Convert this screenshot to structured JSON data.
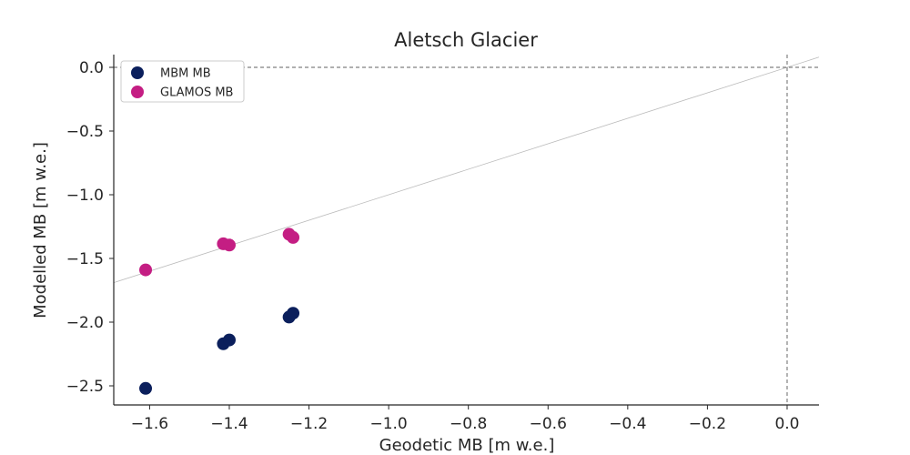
{
  "chart_data": {
    "type": "scatter",
    "title": "Aletsch Glacier",
    "xlabel": "Geodetic MB [m w.e.]",
    "ylabel": "Modelled MB [m w.e.]",
    "xlim": [
      -1.69,
      0.08
    ],
    "ylim": [
      -2.65,
      0.1
    ],
    "xticks": [
      -1.6,
      -1.4,
      -1.2,
      -1.0,
      -0.8,
      -0.6,
      -0.4,
      -0.2,
      0.0
    ],
    "xtick_labels": [
      "−1.6",
      "−1.4",
      "−1.2",
      "−1.0",
      "−0.8",
      "−0.6",
      "−0.4",
      "−0.2",
      "0.0"
    ],
    "yticks": [
      0.0,
      -0.5,
      -1.0,
      -1.5,
      -2.0,
      -2.5
    ],
    "ytick_labels": [
      "0.0",
      "−0.5",
      "−1.0",
      "−1.5",
      "−2.0",
      "−2.5"
    ],
    "grid": false,
    "legend": {
      "placement": "top-left"
    },
    "series": [
      {
        "name": "MBM MB",
        "color": "#0b1f5c",
        "points": [
          {
            "x": -1.61,
            "y": -2.52
          },
          {
            "x": -1.415,
            "y": -2.17
          },
          {
            "x": -1.4,
            "y": -2.14
          },
          {
            "x": -1.25,
            "y": -1.96
          },
          {
            "x": -1.24,
            "y": -1.93
          }
        ]
      },
      {
        "name": "GLAMOS MB",
        "color": "#c41e83",
        "points": [
          {
            "x": -1.61,
            "y": -1.59
          },
          {
            "x": -1.415,
            "y": -1.385
          },
          {
            "x": -1.4,
            "y": -1.395
          },
          {
            "x": -1.25,
            "y": -1.31
          },
          {
            "x": -1.24,
            "y": -1.335
          }
        ]
      }
    ],
    "reference_lines": {
      "horizontal_dashed_y": 0.0,
      "vertical_dashed_x": 0.0,
      "fit_line": {
        "slope": 1.0,
        "intercept": 0.0,
        "color": "#bbbbbb"
      }
    }
  }
}
